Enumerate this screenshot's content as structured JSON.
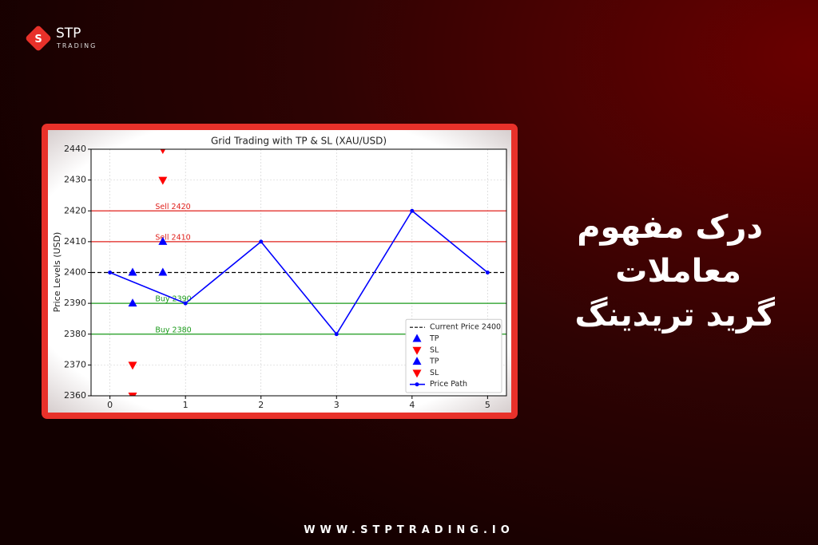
{
  "logo": {
    "name": "STP",
    "sub": "TRADING"
  },
  "headline": [
    "درک مفهوم",
    "معاملات",
    "گرید تریدینگ"
  ],
  "url": "WWW.STPTRADING.IO",
  "chart_data": {
    "type": "line",
    "title": "Grid Trading with TP & SL (XAU/USD)",
    "y_label": "Price Levels (USD)",
    "x": [
      0,
      1,
      2,
      3,
      4,
      5
    ],
    "xlim": [
      -0.25,
      5.25
    ],
    "xticks": [
      0,
      1,
      2,
      3,
      4,
      5
    ],
    "ylim": [
      2360,
      2440
    ],
    "yticks": [
      2360,
      2370,
      2380,
      2390,
      2400,
      2410,
      2420,
      2430,
      2440
    ],
    "grid": true,
    "legend": "lower right",
    "levels": [
      {
        "value": 2420,
        "label": "Sell 2420",
        "color": "#e0201c"
      },
      {
        "value": 2410,
        "label": "Sell 2410",
        "color": "#e0201c"
      },
      {
        "value": 2390,
        "label": "Buy 2390",
        "color": "#1a9a1a"
      },
      {
        "value": 2380,
        "label": "Buy 2380",
        "color": "#1a9a1a"
      }
    ],
    "reference_lines": [
      {
        "name": "Current Price 2400",
        "value": 2400,
        "color": "#000000"
      }
    ],
    "series": [
      {
        "name": "TP",
        "color": "#0000ff",
        "marker": "triangle-up",
        "x": [
          0.3,
          0.3
        ],
        "values": [
          2400,
          2390
        ]
      },
      {
        "name": "SL",
        "color": "#ff0000",
        "marker": "triangle-down",
        "x": [
          0.3,
          0.3
        ],
        "values": [
          2370,
          2360
        ]
      },
      {
        "name": "TP",
        "color": "#0000ff",
        "marker": "triangle-up",
        "x": [
          0.7,
          0.7
        ],
        "values": [
          2410,
          2400
        ]
      },
      {
        "name": "SL",
        "color": "#ff0000",
        "marker": "triangle-down",
        "x": [
          0.7,
          0.7
        ],
        "values": [
          2430,
          2440
        ]
      },
      {
        "name": "Price Path",
        "color": "#0000ff",
        "marker": "circle",
        "values": [
          2400,
          2390,
          2410,
          2380,
          2420,
          2400
        ]
      }
    ]
  }
}
